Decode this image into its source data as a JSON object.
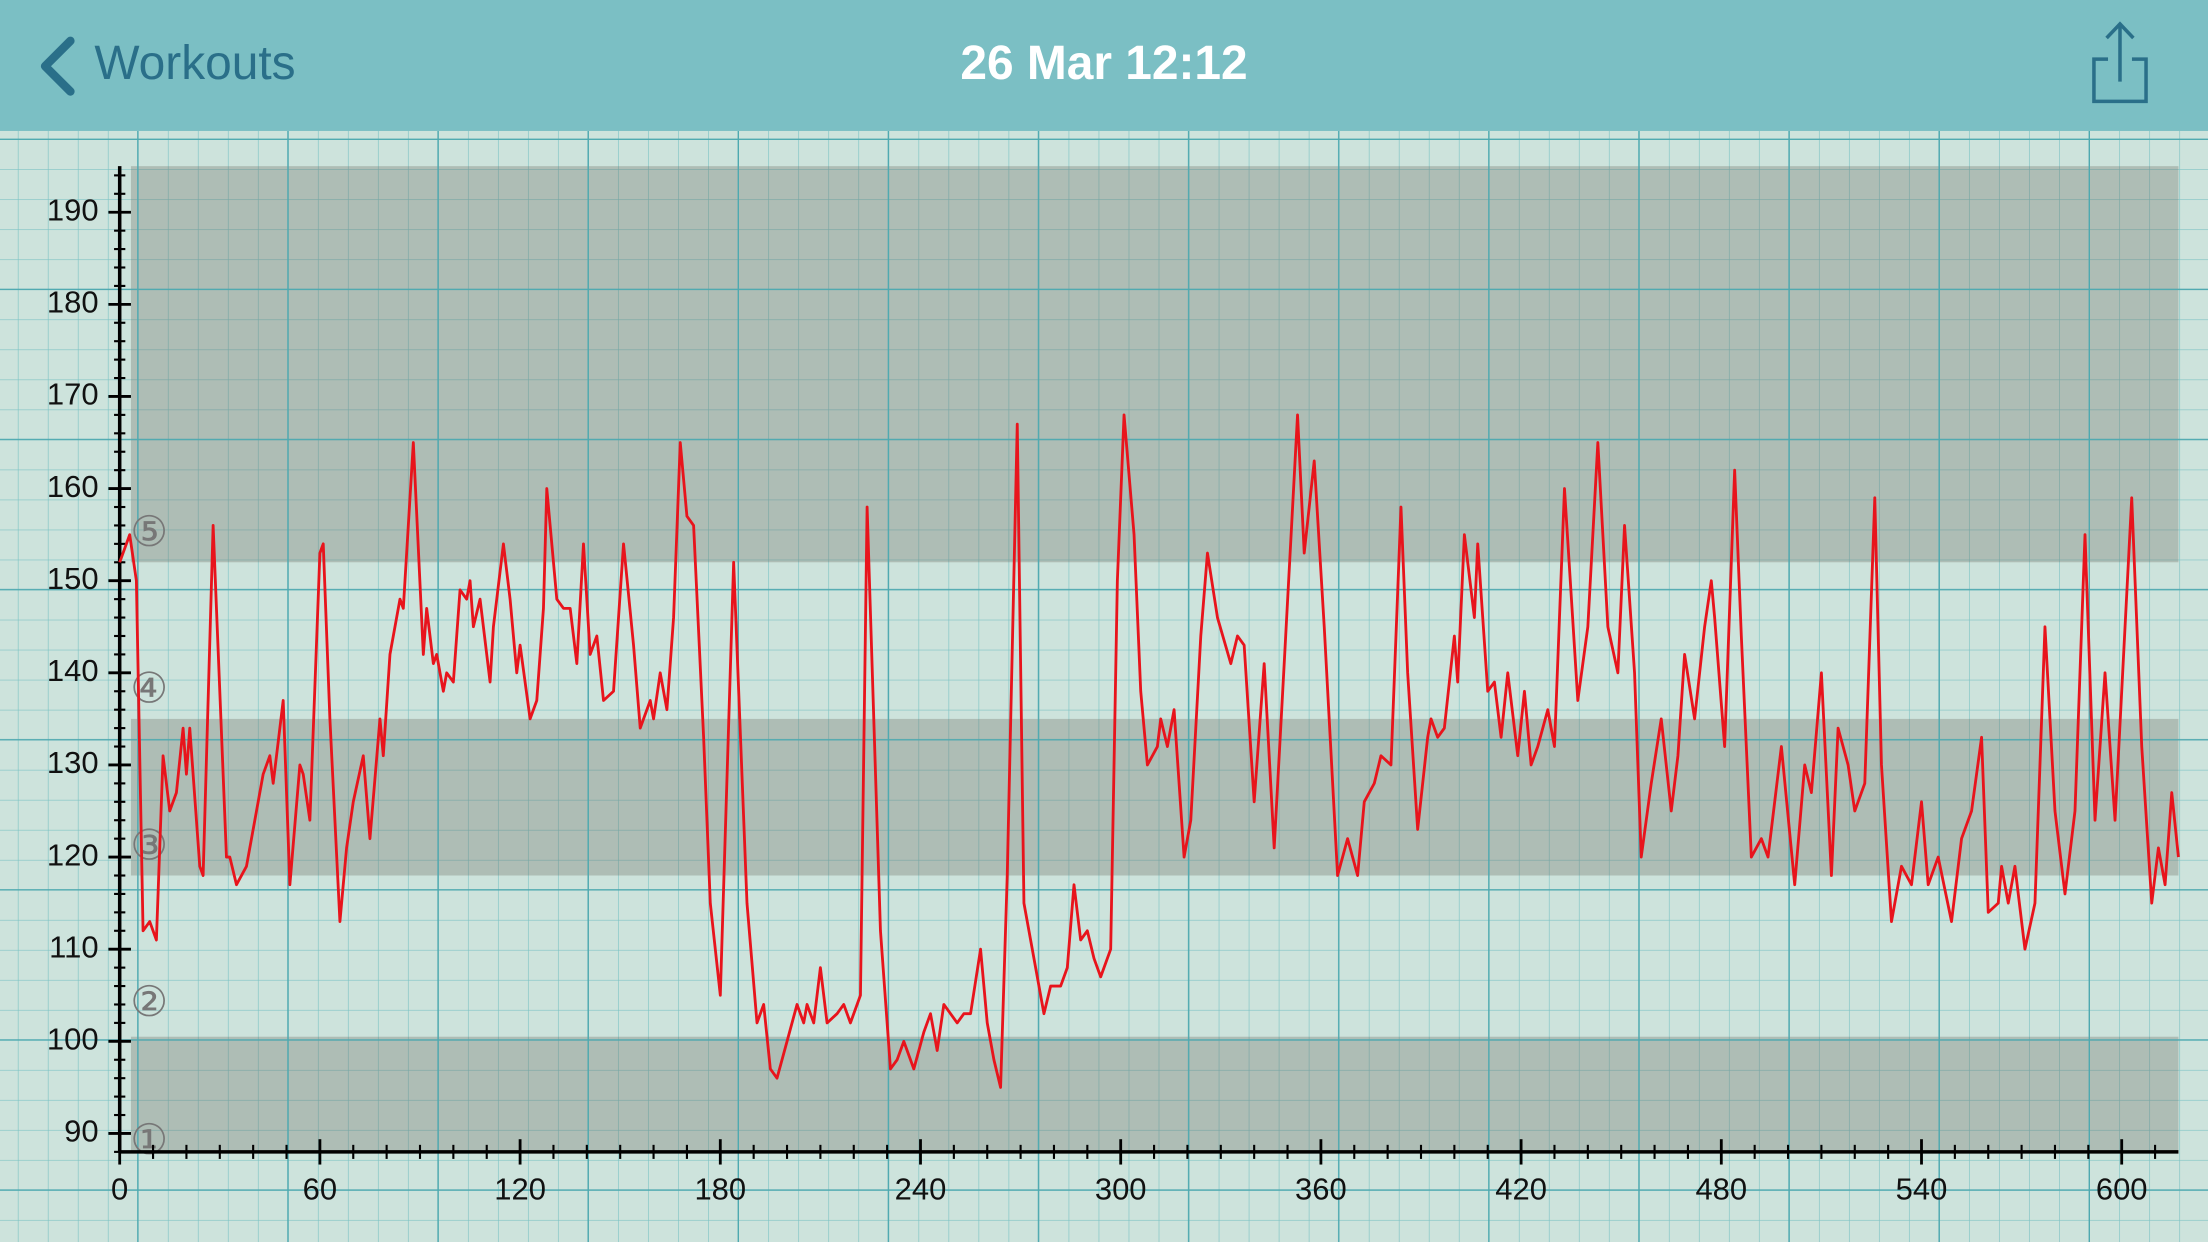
{
  "header": {
    "back": "Workouts",
    "title": "26 Mar 12:12"
  },
  "chart_data": {
    "type": "line",
    "color": "#e8141c",
    "x": [
      0,
      3,
      5,
      7,
      9,
      11,
      13,
      15,
      17,
      19,
      20,
      21,
      24,
      25,
      28,
      32,
      33,
      35,
      38,
      41,
      43,
      45,
      46,
      49,
      51,
      54,
      55,
      57,
      60,
      61,
      63,
      66,
      68,
      70,
      73,
      75,
      78,
      79,
      81,
      84,
      85,
      88,
      91,
      92,
      94,
      95,
      97,
      98,
      100,
      102,
      104,
      105,
      106,
      108,
      111,
      112,
      115,
      117,
      119,
      120,
      123,
      125,
      127,
      128,
      131,
      133,
      135,
      137,
      139,
      141,
      143,
      145,
      148,
      151,
      154,
      156,
      159,
      160,
      162,
      164,
      166,
      168,
      170,
      172,
      175,
      177,
      180,
      184,
      188,
      191,
      193,
      195,
      197,
      200,
      203,
      205,
      206,
      208,
      210,
      212,
      215,
      217,
      219,
      222,
      224,
      226,
      228,
      231,
      233,
      235,
      238,
      241,
      243,
      245,
      247,
      249,
      251,
      253,
      255,
      258,
      260,
      262,
      264,
      266,
      269,
      271,
      274,
      277,
      279,
      282,
      284,
      286,
      288,
      290,
      292,
      294,
      297,
      299,
      301,
      304,
      306,
      308,
      311,
      312,
      314,
      316,
      319,
      321,
      324,
      326,
      329,
      333,
      335,
      337,
      340,
      343,
      346,
      349,
      353,
      355,
      358,
      361,
      365,
      368,
      371,
      373,
      376,
      378,
      381,
      384,
      386,
      389,
      392,
      393,
      395,
      397,
      400,
      401,
      403,
      406,
      407,
      410,
      412,
      414,
      416,
      419,
      421,
      423,
      425,
      428,
      430,
      433,
      437,
      440,
      443,
      446,
      449,
      451,
      454,
      456,
      459,
      462,
      465,
      467,
      469,
      472,
      475,
      477,
      478,
      481,
      484,
      486,
      489,
      492,
      494,
      496,
      498,
      502,
      505,
      507,
      510,
      513,
      515,
      518,
      520,
      523,
      526,
      528,
      531,
      534,
      537,
      540,
      542,
      545,
      549,
      552,
      555,
      558,
      560,
      563,
      564,
      566,
      568,
      571,
      574,
      577,
      580,
      583,
      586,
      589,
      592,
      595,
      598,
      603,
      606,
      609,
      611,
      613,
      615,
      617
    ],
    "values": [
      152,
      155,
      150,
      112,
      113,
      111,
      131,
      125,
      127,
      134,
      129,
      134,
      119,
      118,
      156,
      120,
      120,
      117,
      119,
      125,
      129,
      131,
      128,
      137,
      117,
      130,
      129,
      124,
      153,
      154,
      135,
      113,
      121,
      126,
      131,
      122,
      135,
      131,
      142,
      148,
      147,
      165,
      142,
      147,
      141,
      142,
      138,
      140,
      139,
      149,
      148,
      150,
      145,
      148,
      139,
      145,
      154,
      148,
      140,
      143,
      135,
      137,
      147,
      160,
      148,
      147,
      147,
      141,
      154,
      142,
      144,
      137,
      138,
      154,
      143,
      134,
      137,
      135,
      140,
      136,
      146,
      165,
      157,
      156,
      133,
      115,
      105,
      152,
      115,
      102,
      104,
      97,
      96,
      100,
      104,
      102,
      104,
      102,
      108,
      102,
      103,
      104,
      102,
      105,
      158,
      135,
      112,
      97,
      98,
      100,
      97,
      101,
      103,
      99,
      104,
      103,
      102,
      103,
      103,
      110,
      102,
      98,
      95,
      118,
      167,
      115,
      109,
      103,
      106,
      106,
      108,
      117,
      111,
      112,
      109,
      107,
      110,
      150,
      168,
      155,
      138,
      130,
      132,
      135,
      132,
      136,
      120,
      124,
      144,
      153,
      146,
      141,
      144,
      143,
      126,
      141,
      121,
      141,
      168,
      153,
      163,
      145,
      118,
      122,
      118,
      126,
      128,
      131,
      130,
      158,
      140,
      123,
      133,
      135,
      133,
      134,
      144,
      139,
      155,
      146,
      154,
      138,
      139,
      133,
      140,
      131,
      138,
      130,
      132,
      136,
      132,
      160,
      137,
      145,
      165,
      145,
      140,
      156,
      140,
      120,
      128,
      135,
      125,
      131,
      142,
      135,
      145,
      150,
      146,
      132,
      162,
      144,
      120,
      122,
      120,
      126,
      132,
      117,
      130,
      127,
      140,
      118,
      134,
      130,
      125,
      128,
      159,
      130,
      113,
      119,
      117,
      126,
      117,
      120,
      113,
      122,
      125,
      133,
      114,
      115,
      119,
      115,
      119,
      110,
      115,
      145,
      125,
      116,
      125,
      155,
      124,
      140,
      124,
      159,
      132,
      115,
      121,
      117,
      127,
      120
    ],
    "xlim": [
      0,
      617
    ],
    "ylim": [
      88,
      195
    ],
    "xticks": [
      0,
      60,
      120,
      180,
      240,
      300,
      360,
      420,
      480,
      540,
      600
    ],
    "yticks": [
      90,
      100,
      110,
      120,
      130,
      140,
      150,
      160,
      170,
      180,
      190
    ],
    "xminorticks": [
      10,
      20,
      30,
      40,
      50,
      70,
      80,
      90,
      100,
      110,
      130,
      140,
      150,
      160,
      170,
      190,
      200,
      210,
      220,
      230,
      250,
      260,
      270,
      280,
      290,
      310,
      320,
      330,
      340,
      350,
      370,
      380,
      390,
      400,
      410,
      430,
      440,
      450,
      460,
      470,
      490,
      500,
      510,
      520,
      530,
      550,
      560,
      570,
      580,
      590,
      610
    ],
    "yminorticks": [
      88,
      92,
      94,
      96,
      98,
      102,
      104,
      106,
      108,
      112,
      114,
      116,
      118,
      122,
      124,
      126,
      128,
      132,
      134,
      136,
      138,
      142,
      144,
      146,
      148,
      152,
      154,
      156,
      158,
      162,
      164,
      166,
      168,
      172,
      174,
      176,
      178,
      182,
      184,
      186,
      188,
      192,
      194
    ],
    "bands": [
      {
        "from": 152,
        "to": 195
      },
      {
        "from": 118,
        "to": 135
      },
      {
        "from": 88,
        "to": 100.5
      }
    ],
    "zone_labels": [
      {
        "value": 155,
        "label": "⑤"
      },
      {
        "value": 138,
        "label": "④"
      },
      {
        "value": 121,
        "label": "③"
      },
      {
        "value": 104,
        "label": "②"
      },
      {
        "value": 89,
        "label": "①"
      }
    ]
  }
}
